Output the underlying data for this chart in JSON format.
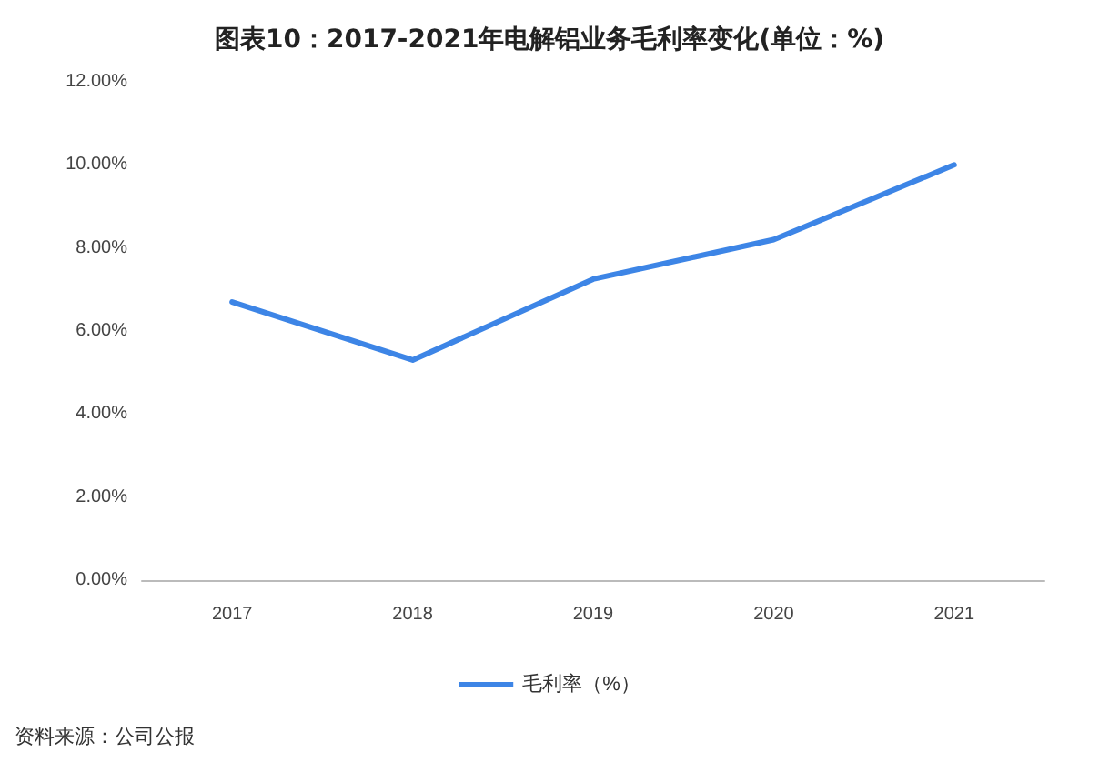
{
  "chart_data": {
    "type": "line",
    "title": "图表10：2017-2021年电解铝业务毛利率变化(单位：%)",
    "categories": [
      "2017",
      "2018",
      "2019",
      "2020",
      "2021"
    ],
    "series": [
      {
        "name": "毛利率（%）",
        "color": "#3d85e6",
        "values": [
          6.7,
          5.3,
          7.25,
          8.2,
          10.0
        ]
      }
    ],
    "ylim": [
      0,
      12
    ],
    "yticks": [
      {
        "value": 0,
        "label": "0.00%"
      },
      {
        "value": 2,
        "label": "2.00%"
      },
      {
        "value": 4,
        "label": "4.00%"
      },
      {
        "value": 6,
        "label": "6.00%"
      },
      {
        "value": 8,
        "label": "8.00%"
      },
      {
        "value": 10,
        "label": "10.00%"
      },
      {
        "value": 12,
        "label": "12.00%"
      }
    ],
    "grid": false,
    "legend": "bottom",
    "marker": "none",
    "line_style": "solid",
    "annotations": [
      "资料来源：公司公报"
    ]
  }
}
